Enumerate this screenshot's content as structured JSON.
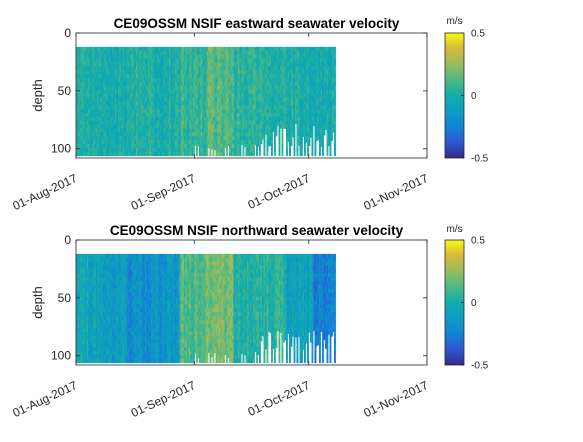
{
  "chart_data": [
    {
      "type": "heatmap",
      "title": "CE09OSSM NSIF eastward seawater velocity",
      "ylabel": "depth",
      "xlabel": "",
      "x_ticks": [
        "01-Aug-2017",
        "01-Sep-2017",
        "01-Oct-2017",
        "01-Nov-2017"
      ],
      "y_ticks": [
        "0",
        "50",
        "100"
      ],
      "ylim": [
        0,
        108
      ],
      "y_reversed": true,
      "xlim": [
        "2017-08-01",
        "2017-11-01"
      ],
      "data_time_range": [
        "2017-08-01",
        "2017-10-08"
      ],
      "depth_range": [
        12,
        106
      ],
      "colorbar": {
        "label": "m/s",
        "ticks": [
          "0.5",
          "0",
          "-0.5"
        ],
        "range": [
          -0.5,
          0.5
        ],
        "colormap": "parula"
      },
      "mean_velocity_by_time_segment": {
        "segments": [
          {
            "start": "2017-08-01",
            "end": "2017-08-07",
            "value": 0.02
          },
          {
            "start": "2017-08-07",
            "end": "2017-08-14",
            "value": -0.02
          },
          {
            "start": "2017-08-14",
            "end": "2017-08-21",
            "value": 0.03
          },
          {
            "start": "2017-08-21",
            "end": "2017-08-28",
            "value": 0.01
          },
          {
            "start": "2017-08-28",
            "end": "2017-09-04",
            "value": 0.06
          },
          {
            "start": "2017-09-04",
            "end": "2017-09-11",
            "value": 0.12
          },
          {
            "start": "2017-09-11",
            "end": "2017-09-18",
            "value": 0.05
          },
          {
            "start": "2017-09-18",
            "end": "2017-09-25",
            "value": 0.03
          },
          {
            "start": "2017-09-25",
            "end": "2017-10-02",
            "value": 0.0
          },
          {
            "start": "2017-10-02",
            "end": "2017-10-08",
            "value": -0.02
          }
        ]
      }
    },
    {
      "type": "heatmap",
      "title": "CE09OSSM NSIF northward seawater velocity",
      "ylabel": "depth",
      "xlabel": "",
      "x_ticks": [
        "01-Aug-2017",
        "01-Sep-2017",
        "01-Oct-2017",
        "01-Nov-2017"
      ],
      "y_ticks": [
        "0",
        "50",
        "100"
      ],
      "ylim": [
        0,
        108
      ],
      "y_reversed": true,
      "xlim": [
        "2017-08-01",
        "2017-11-01"
      ],
      "data_time_range": [
        "2017-08-01",
        "2017-10-08"
      ],
      "depth_range": [
        12,
        106
      ],
      "colorbar": {
        "label": "m/s",
        "ticks": [
          "0.5",
          "0",
          "-0.5"
        ],
        "range": [
          -0.5,
          0.5
        ],
        "colormap": "parula"
      },
      "mean_velocity_by_time_segment": {
        "segments": [
          {
            "start": "2017-08-01",
            "end": "2017-08-07",
            "value": -0.05
          },
          {
            "start": "2017-08-07",
            "end": "2017-08-14",
            "value": -0.12
          },
          {
            "start": "2017-08-14",
            "end": "2017-08-21",
            "value": -0.2
          },
          {
            "start": "2017-08-21",
            "end": "2017-08-28",
            "value": -0.15
          },
          {
            "start": "2017-08-28",
            "end": "2017-09-04",
            "value": 0.12
          },
          {
            "start": "2017-09-04",
            "end": "2017-09-11",
            "value": 0.18
          },
          {
            "start": "2017-09-11",
            "end": "2017-09-18",
            "value": 0.02
          },
          {
            "start": "2017-09-18",
            "end": "2017-09-25",
            "value": 0.05
          },
          {
            "start": "2017-09-25",
            "end": "2017-10-02",
            "value": -0.08
          },
          {
            "start": "2017-10-02",
            "end": "2017-10-08",
            "value": -0.25
          }
        ]
      }
    }
  ]
}
